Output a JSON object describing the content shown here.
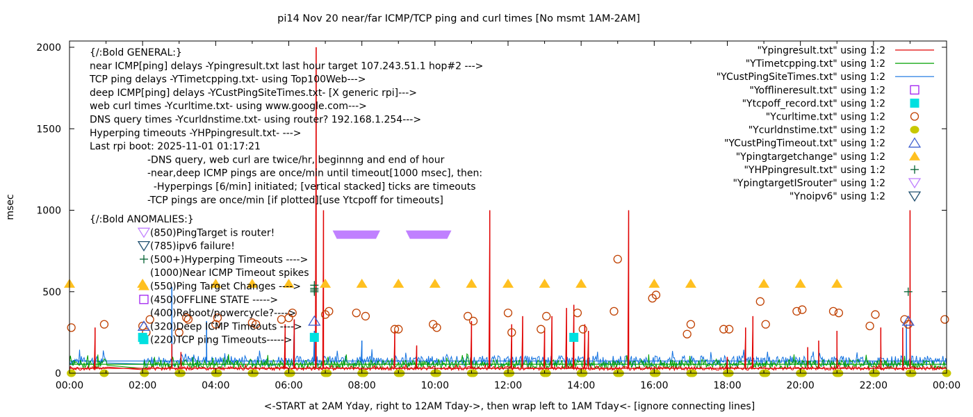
{
  "chart_data": {
    "type": "line",
    "title": "pi14 Nov 20  near/far ICMP/TCP ping and curl times [No msmt 1AM-2AM]",
    "xlabel": "<-START at 2AM Yday, right to 12AM Tday->, then wrap left to 1AM Tday<- [ignore connecting lines]",
    "ylabel": "msec",
    "xlim": [
      0,
      24
    ],
    "ylim": [
      0,
      2000
    ],
    "x_ticks": [
      "00:00",
      "02:00",
      "04:00",
      "06:00",
      "08:00",
      "10:00",
      "12:00",
      "14:00",
      "16:00",
      "18:00",
      "20:00",
      "22:00",
      "00:00"
    ],
    "y_ticks": [
      "0",
      "500",
      "1000",
      "1500",
      "2000"
    ],
    "grid": false,
    "legend_position": "top-right",
    "annotations": {
      "general_header": "{/:Bold GENERAL:}",
      "general_lines": [
        "near ICMP[ping] delays -Ypingresult.txt last hour target 107.243.51.1 hop#2 --->",
        "TCP ping delays -YTimetcpping.txt- using Top100Web--->",
        "deep ICMP[ping] delays -YCustPingSiteTimes.txt- [X generic rpi]--->",
        "web curl times -Ycurltime.txt- using www.google.com--->",
        "DNS query times -Ycurldnstime.txt- using router? 192.168.1.254--->",
        "Hyperping timeouts -YHPpingresult.txt- --->",
        "Last rpi boot: 2025-11-01 01:17:21"
      ],
      "notes": [
        "-DNS query, web curl are twice/hr, beginnng and end of hour",
        "-near,deep ICMP pings are once/min until timeout[1000 msec], then:",
        "  -Hyperpings [6/min] initiated; [vertical stacked] ticks are timeouts",
        "-TCP pings are once/min [if plotted][use Ytcpoff for timeouts]"
      ],
      "anomalies_header": "{/:Bold ANOMALIES:}",
      "anomalies": [
        {
          "marker": "ytarget-router",
          "text": "(850)PingTarget is router!"
        },
        {
          "marker": "noipv6",
          "text": "(785)ipv6 failure!"
        },
        {
          "marker": "hyperping",
          "text": "(500+)Hyperping Timeouts ---->"
        },
        {
          "marker": "none",
          "text": "(1000)Near ICMP Timeout spikes"
        },
        {
          "marker": "target-change",
          "text": "(550)Ping Target Changes ---->"
        },
        {
          "marker": "offline",
          "text": "(450)OFFLINE STATE ----->"
        },
        {
          "marker": "none",
          "text": "(400)Reboot/powercycle?---->"
        },
        {
          "marker": "cust-timeout",
          "text": "(320)Deep ICMP Timeouts ---->"
        },
        {
          "marker": "tcpoff",
          "text": "(220)TCP ping Timeouts----->"
        }
      ]
    },
    "legend": [
      {
        "label": "\"Ypingresult.txt\" using 1:2",
        "style": "line",
        "color": "#e00000"
      },
      {
        "label": "\"YTimetcpping.txt\" using 1:2",
        "style": "line",
        "color": "#00a000"
      },
      {
        "label": "\"YCustPingSiteTimes.txt\" using 1:2",
        "style": "line",
        "color": "#1070e0"
      },
      {
        "label": "\"Yofflineresult.txt\" using 1:2",
        "style": "open-square",
        "color": "#a020f0"
      },
      {
        "label": "\"Ytcpoff_record.txt\" using 1:2",
        "style": "filled-square",
        "color": "#00e0e0"
      },
      {
        "label": "\"Ycurltime.txt\" using 1:2",
        "style": "open-circle",
        "color": "#c04000"
      },
      {
        "label": "\"Ycurldnstime.txt\" using 1:2",
        "style": "filled-circle",
        "color": "#c8c800"
      },
      {
        "label": "\"YCustPingTimeout.txt\" using 1:2",
        "style": "open-triangle-up",
        "color": "#4060d0"
      },
      {
        "label": "\"Ypingtargetchange\" using 1:2",
        "style": "filled-triangle-up",
        "color": "#ffc020"
      },
      {
        "label": "\"YHPpingresult.txt\" using 1:2",
        "style": "plus",
        "color": "#006030"
      },
      {
        "label": "\"YpingtargetISrouter\" using 1:2",
        "style": "open-triangle-down",
        "color": "#c080ff"
      },
      {
        "label": "\"Ynoipv6\" using 1:2",
        "style": "open-triangle-down",
        "color": "#205070"
      }
    ],
    "series": [
      {
        "name": "Ypingresult.txt",
        "baseline": 30,
        "spikes": [
          [
            0.7,
            280
          ],
          [
            2.8,
            180
          ],
          [
            3.05,
            130
          ],
          [
            5.9,
            300
          ],
          [
            6.15,
            330
          ],
          [
            6.75,
            2000
          ],
          [
            6.95,
            1000
          ],
          [
            8.9,
            260
          ],
          [
            9.5,
            170
          ],
          [
            11.0,
            320
          ],
          [
            11.5,
            1000
          ],
          [
            12.1,
            300
          ],
          [
            12.4,
            350
          ],
          [
            13.0,
            280
          ],
          [
            13.2,
            350
          ],
          [
            13.6,
            400
          ],
          [
            13.8,
            420
          ],
          [
            14.1,
            300
          ],
          [
            14.2,
            260
          ],
          [
            15.3,
            1000
          ],
          [
            18.0,
            100
          ],
          [
            18.5,
            280
          ],
          [
            18.7,
            350
          ],
          [
            20.2,
            160
          ],
          [
            20.5,
            200
          ],
          [
            21.0,
            260
          ],
          [
            22.2,
            280
          ],
          [
            22.8,
            280
          ],
          [
            23.0,
            1000
          ]
        ]
      },
      {
        "name": "YTimetcpping.txt",
        "baseline": 55
      },
      {
        "name": "YCustPingSiteTimes.txt",
        "baseline": 75,
        "spikes": [
          [
            2.8,
            530
          ],
          [
            3.75,
            320
          ],
          [
            6.15,
            330
          ],
          [
            6.7,
            260
          ],
          [
            8.0,
            200
          ],
          [
            10.0,
            80
          ],
          [
            22.9,
            300
          ]
        ]
      },
      {
        "name": "Ytcpoff_record.txt",
        "points": [
          [
            2.0,
            220
          ],
          [
            6.7,
            220
          ],
          [
            13.8,
            220
          ]
        ]
      },
      {
        "name": "Ycurltime.txt",
        "points": [
          [
            0.05,
            280
          ],
          [
            0.95,
            300
          ],
          [
            2.0,
            290
          ],
          [
            2.1,
            250
          ],
          [
            2.2,
            330
          ],
          [
            3.0,
            250
          ],
          [
            3.2,
            340
          ],
          [
            3.25,
            330
          ],
          [
            4.0,
            300
          ],
          [
            4.05,
            340
          ],
          [
            5.0,
            310
          ],
          [
            5.1,
            300
          ],
          [
            5.8,
            330
          ],
          [
            6.0,
            340
          ],
          [
            6.1,
            370
          ],
          [
            7.0,
            360
          ],
          [
            7.1,
            380
          ],
          [
            7.85,
            370
          ],
          [
            8.1,
            350
          ],
          [
            8.9,
            270
          ],
          [
            9.0,
            270
          ],
          [
            9.95,
            300
          ],
          [
            10.05,
            280
          ],
          [
            10.9,
            350
          ],
          [
            11.05,
            320
          ],
          [
            12.0,
            370
          ],
          [
            12.1,
            250
          ],
          [
            12.9,
            270
          ],
          [
            13.05,
            350
          ],
          [
            13.9,
            370
          ],
          [
            14.05,
            270
          ],
          [
            14.9,
            380
          ],
          [
            15.0,
            700
          ],
          [
            15.95,
            460
          ],
          [
            16.05,
            480
          ],
          [
            16.9,
            240
          ],
          [
            17.0,
            300
          ],
          [
            17.9,
            270
          ],
          [
            18.05,
            270
          ],
          [
            18.9,
            440
          ],
          [
            19.05,
            300
          ],
          [
            19.9,
            380
          ],
          [
            20.05,
            390
          ],
          [
            20.9,
            380
          ],
          [
            21.05,
            370
          ],
          [
            21.9,
            290
          ],
          [
            22.05,
            360
          ],
          [
            22.85,
            330
          ],
          [
            22.95,
            300
          ],
          [
            23.95,
            330
          ]
        ]
      },
      {
        "name": "Ycurldnstime.txt",
        "points": [
          [
            0.05,
            0
          ],
          [
            0.95,
            0
          ],
          [
            2.05,
            0
          ],
          [
            3.0,
            0
          ],
          [
            3.05,
            0
          ],
          [
            4.0,
            0
          ],
          [
            4.05,
            0
          ],
          [
            5.0,
            0
          ],
          [
            5.05,
            0
          ],
          [
            6.0,
            0
          ],
          [
            6.05,
            0
          ],
          [
            7.0,
            0
          ],
          [
            7.05,
            0
          ],
          [
            8.0,
            0
          ],
          [
            8.05,
            0
          ],
          [
            9.0,
            0
          ],
          [
            9.05,
            0
          ],
          [
            10.0,
            0
          ],
          [
            10.05,
            0
          ],
          [
            11.0,
            0
          ],
          [
            11.05,
            0
          ],
          [
            12.0,
            0
          ],
          [
            12.05,
            0
          ],
          [
            13.0,
            0
          ],
          [
            13.05,
            0
          ],
          [
            14.0,
            0
          ],
          [
            14.05,
            0
          ],
          [
            15.0,
            0
          ],
          [
            15.05,
            0
          ],
          [
            16.0,
            0
          ],
          [
            16.05,
            0
          ],
          [
            17.0,
            0
          ],
          [
            17.05,
            0
          ],
          [
            18.0,
            0
          ],
          [
            18.05,
            0
          ],
          [
            19.0,
            0
          ],
          [
            19.05,
            0
          ],
          [
            20.0,
            0
          ],
          [
            20.05,
            0
          ],
          [
            21.0,
            0
          ],
          [
            21.05,
            0
          ],
          [
            22.0,
            0
          ],
          [
            22.05,
            0
          ],
          [
            23.0,
            0
          ],
          [
            23.05,
            0
          ],
          [
            24.0,
            0
          ]
        ]
      },
      {
        "name": "YCustPingTimeout.txt",
        "points": [
          [
            6.7,
            320
          ],
          [
            22.95,
            320
          ]
        ]
      },
      {
        "name": "Ypingtargetchange",
        "points": [
          [
            0.0,
            550
          ],
          [
            2.0,
            550
          ],
          [
            4.0,
            550
          ],
          [
            5.0,
            550
          ],
          [
            6.0,
            550
          ],
          [
            7.0,
            550
          ],
          [
            8.0,
            550
          ],
          [
            9.0,
            550
          ],
          [
            10.0,
            550
          ],
          [
            11.0,
            550
          ],
          [
            12.0,
            550
          ],
          [
            13.0,
            550
          ],
          [
            14.0,
            550
          ],
          [
            16.0,
            550
          ],
          [
            17.0,
            550
          ],
          [
            19.0,
            550
          ],
          [
            20.0,
            550
          ],
          [
            21.0,
            550
          ]
        ]
      },
      {
        "name": "YHPpingresult.txt",
        "points": [
          [
            6.7,
            500
          ],
          [
            6.7,
            520
          ],
          [
            6.7,
            540
          ],
          [
            6.7,
            510
          ],
          [
            22.95,
            500
          ]
        ]
      },
      {
        "name": "YpingtargetISrouter",
        "ranges": [
          [
            7.2,
            8.5,
            850
          ],
          [
            9.2,
            10.45,
            850
          ]
        ]
      },
      {
        "name": "Ynoipv6",
        "points": []
      }
    ]
  }
}
